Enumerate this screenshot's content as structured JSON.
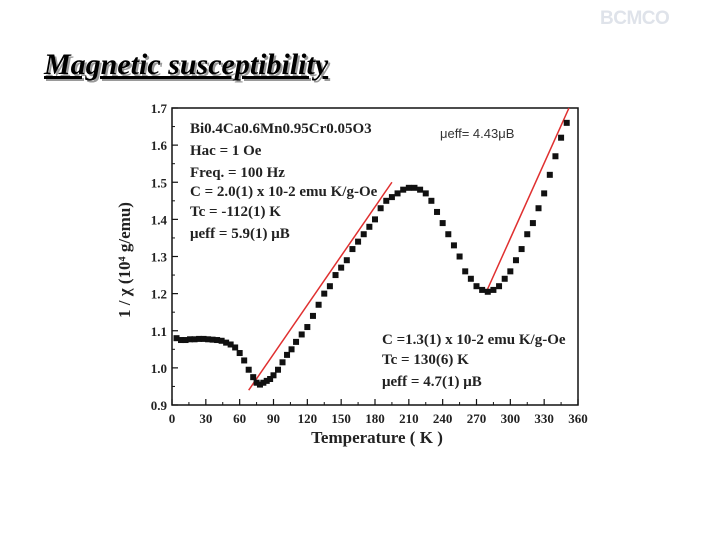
{
  "logo": "BCMCO",
  "slide_title": "Magnetic susceptibility",
  "chart_data": {
    "type": "scatter",
    "xlabel": "Temperature ( K )",
    "ylabel": "1 / χ (10⁴ g/emu)",
    "xlim": [
      0,
      360
    ],
    "ylim": [
      0.9,
      1.7
    ],
    "x_ticks": [
      "0",
      "30",
      "60",
      "90",
      "120",
      "150",
      "180",
      "210",
      "240",
      "270",
      "300",
      "330",
      "360"
    ],
    "y_ticks": [
      "0.9",
      "1.0",
      "1.1",
      "1.2",
      "1.3",
      "1.4",
      "1.5",
      "1.6",
      "1.7"
    ],
    "annotation_top_right": "μeff= 4.43μB",
    "legend_top": {
      "compound": "Bi0.4Ca0.6Mn0.95Cr0.05O3",
      "hac": "Hac = 1 Oe",
      "freq": "Freq. = 100 Hz",
      "c": "C = 2.0(1) x 10-2 emu K/g-Oe",
      "tc": "Tc = -112(1) K",
      "mueff": "μeff = 5.9(1) μB"
    },
    "legend_bottom": {
      "c": "C =1.3(1) x 10-2 emu K/g-Oe",
      "tc": "Tc = 130(6) K",
      "mueff": "μeff = 4.7(1) μB"
    },
    "series": [
      {
        "marker": "square",
        "x": [
          4,
          8,
          12,
          16,
          20,
          24,
          28,
          32,
          36,
          40,
          44,
          48,
          52,
          56,
          60,
          64,
          68,
          72,
          75,
          78,
          81,
          84,
          87,
          90,
          94,
          98,
          102,
          106,
          110,
          115,
          120,
          125,
          130,
          135,
          140,
          145,
          150,
          155,
          160,
          165,
          170,
          175,
          180,
          185,
          190,
          195,
          200,
          205,
          210,
          215,
          220,
          225,
          230,
          235,
          240,
          245,
          250,
          255,
          260,
          265,
          270,
          275,
          280,
          285,
          290,
          295,
          300,
          305,
          310,
          315,
          320,
          325,
          330,
          335,
          340,
          345,
          350
        ],
        "y": [
          1.08,
          1.075,
          1.075,
          1.077,
          1.077,
          1.078,
          1.078,
          1.077,
          1.076,
          1.075,
          1.073,
          1.068,
          1.063,
          1.055,
          1.04,
          1.02,
          0.995,
          0.975,
          0.96,
          0.955,
          0.96,
          0.965,
          0.97,
          0.98,
          0.995,
          1.015,
          1.035,
          1.05,
          1.07,
          1.09,
          1.11,
          1.14,
          1.17,
          1.2,
          1.22,
          1.25,
          1.27,
          1.29,
          1.32,
          1.34,
          1.36,
          1.38,
          1.4,
          1.43,
          1.45,
          1.46,
          1.47,
          1.48,
          1.485,
          1.485,
          1.48,
          1.47,
          1.45,
          1.42,
          1.39,
          1.36,
          1.33,
          1.3,
          1.26,
          1.24,
          1.22,
          1.21,
          1.205,
          1.21,
          1.22,
          1.24,
          1.26,
          1.29,
          1.32,
          1.36,
          1.39,
          1.43,
          1.47,
          1.52,
          1.57,
          1.62,
          1.66
        ]
      }
    ],
    "fit_lines": [
      {
        "x": [
          68,
          195
        ],
        "y": [
          0.94,
          1.5
        ]
      },
      {
        "x": [
          278,
          352
        ],
        "y": [
          1.2,
          1.7
        ]
      }
    ],
    "fit_color": "#e03030",
    "marker_color": "#111111"
  }
}
